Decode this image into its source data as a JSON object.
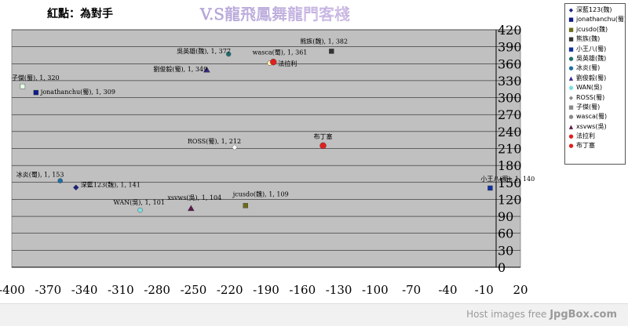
{
  "chart_data": {
    "type": "scatter",
    "title": "紅點：為對手",
    "watermark_text": "V.S龍飛鳳舞龍門客棧",
    "xlim": [
      -400,
      20
    ],
    "ylim": [
      0,
      420
    ],
    "x_ticks": [
      -400,
      -370,
      -340,
      -310,
      -280,
      -250,
      -220,
      -190,
      -160,
      -130,
      -100,
      -70,
      -40,
      -10,
      20
    ],
    "y_ticks": [
      0,
      30,
      60,
      90,
      120,
      150,
      180,
      210,
      240,
      270,
      300,
      330,
      360,
      390,
      420
    ],
    "grid": true,
    "legend_position": "right",
    "background_color": "#c0c0c0",
    "opponent_color": "#e02020",
    "series": [
      {
        "name": "深藍123(魏)",
        "x": -347,
        "y": 141,
        "color": "#1a237e",
        "marker": "diamond",
        "label": "深藍123(魏), 1, 141"
      },
      {
        "name": "jonathanchu(蜀)",
        "x": -380,
        "y": 309,
        "color": "#0d1b8a",
        "marker": "square",
        "label": "jonathanchu(蜀), 1, 309"
      },
      {
        "name": "jcusdo(魏)",
        "x": -207,
        "y": 109,
        "color": "#6b6b1a",
        "marker": "square",
        "label": "jcusdo(魏), 1, 109"
      },
      {
        "name": "熊族(魏)",
        "x": -136,
        "y": 382,
        "color": "#333333",
        "marker": "square",
        "label": "熊族(魏), 1, 382"
      },
      {
        "name": "小王八(蜀)",
        "x": -5,
        "y": 140,
        "color": "#1030a0",
        "marker": "square",
        "label": "小王八(蜀), 1, 140"
      },
      {
        "name": "吳英雄(魏)",
        "x": -221,
        "y": 377,
        "color": "#1e7070",
        "marker": "circle",
        "label": "吳英雄(魏), 1, 377"
      },
      {
        "name": "冰炎(蜀)",
        "x": -360,
        "y": 153,
        "color": "#1f6fa6",
        "marker": "circle",
        "label": "冰炎(蜀), 1, 153"
      },
      {
        "name": "劉俊毅(蜀)",
        "x": -239,
        "y": 349,
        "color": "#3a2a8a",
        "marker": "triangle",
        "label": "劉俊毅(蜀), 1, 349"
      },
      {
        "name": "WAN(吳)",
        "x": -294,
        "y": 101,
        "color": "#7fdfe0",
        "marker": "circle",
        "label": "WAN(吳), 1, 101"
      },
      {
        "name": "ROSS(蜀)",
        "x": -216,
        "y": 212,
        "color": "#ffffff",
        "marker": "diamond",
        "label": "ROSS(蜀), 1, 212"
      },
      {
        "name": "子傑(蜀)",
        "x": -391,
        "y": 320,
        "color": "#e6ffe6",
        "marker": "square",
        "label": "子傑(蜀), 1, 320"
      },
      {
        "name": "wasca(蜀)",
        "x": -187,
        "y": 361,
        "color": "#fff0a8",
        "marker": "circle",
        "label": "wasca(蜀), 1, 361"
      },
      {
        "name": "xsvws(吳)",
        "x": -252,
        "y": 104,
        "color": "#5a1a4a",
        "marker": "triangle",
        "label": "xsvws(吳), 1, 104"
      },
      {
        "name": "法拉利",
        "x": -184,
        "y": 363,
        "color": "#e02020",
        "marker": "circle",
        "label": "法拉利"
      },
      {
        "name": "布丁塞",
        "x": -143,
        "y": 215,
        "color": "#e02020",
        "marker": "circle",
        "label": "布丁塞"
      }
    ]
  },
  "footer": {
    "prefix": "Host images free",
    "brand": "JpgBox.com"
  }
}
